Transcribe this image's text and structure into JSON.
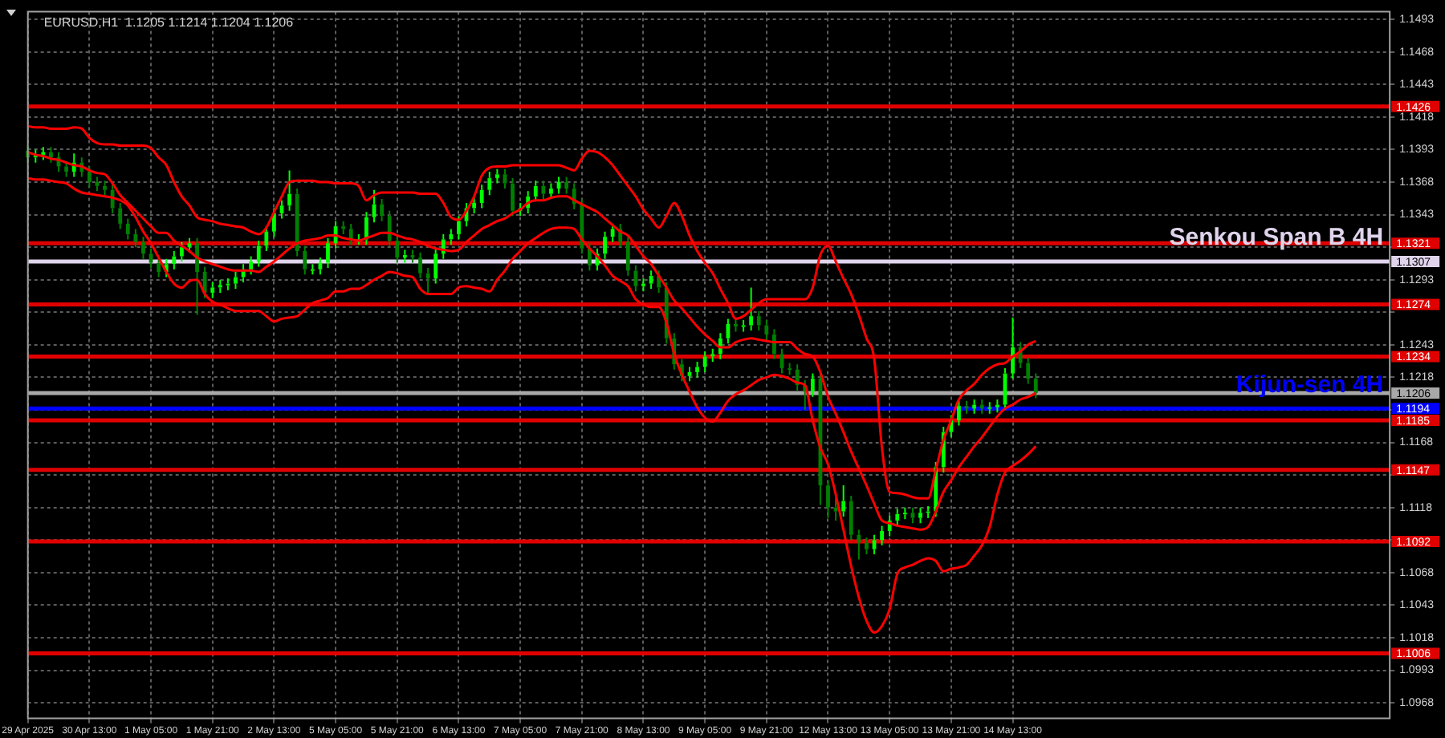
{
  "chart_data": {
    "type": "candlestick",
    "title": "EURUSD,H1  1.1205 1.1214 1.1204 1.1206",
    "grid": true,
    "colors": [
      "#008000",
      "#00ff00",
      "#00ff00",
      "#008000",
      "#008000",
      "#008000",
      "#00ff00",
      "#008000",
      "#008000",
      "#008000",
      "#008000",
      "#008000",
      "#008000",
      "#008000",
      "#008000",
      "#008000",
      "#008000",
      "#008000",
      "#00ff00",
      "#00ff00",
      "#00ff00",
      "#00ff00",
      "#008000",
      "#008000",
      "#00ff00",
      "#00ff00",
      "#00ff00",
      "#00ff00",
      "#00ff00",
      "#00ff00",
      "#00ff00",
      "#00ff00",
      "#00ff00",
      "#00ff00",
      "#00ff00",
      "#008000",
      "#008000",
      "#00ff00",
      "#00ff00",
      "#00ff00",
      "#00ff00",
      "#008000",
      "#008000",
      "#00ff00",
      "#00ff00",
      "#00ff00",
      "#008000",
      "#008000",
      "#008000",
      "#00ff00",
      "#008000",
      "#008000",
      "#008000",
      "#00ff00",
      "#00ff00",
      "#00ff00",
      "#00ff00",
      "#00ff00",
      "#00ff00",
      "#00ff00",
      "#00ff00",
      "#00ff00",
      "#008000",
      "#008000",
      "#00ff00",
      "#00ff00",
      "#00ff00",
      "#008000",
      "#00ff00",
      "#00ff00",
      "#008000",
      "#008000",
      "#008000",
      "#008000",
      "#00ff00",
      "#00ff00",
      "#00ff00",
      "#008000",
      "#008000",
      "#008000",
      "#00ff00",
      "#00ff00",
      "#008000",
      "#008000",
      "#008000",
      "#008000",
      "#00ff00",
      "#00ff00",
      "#00ff00",
      "#00ff00",
      "#00ff00",
      "#00ff00",
      "#008000",
      "#00ff00",
      "#00ff00",
      "#008000",
      "#008000",
      "#008000",
      "#008000",
      "#008000",
      "#008000",
      "#008000",
      "#00ff00",
      "#008000",
      "#008000",
      "#008000",
      "#00ff00",
      "#008000",
      "#008000",
      "#008000",
      "#00ff00",
      "#00ff00",
      "#00ff00",
      "#00ff00",
      "#00ff00",
      "#008000",
      "#00ff00",
      "#00ff00",
      "#00ff00",
      "#00ff00",
      "#00ff00",
      "#00ff00",
      "#008000",
      "#00ff00",
      "#008000",
      "#00ff00",
      "#00ff00",
      "#00ff00",
      "#00ff00",
      "#008000",
      "#008000",
      "#008000",
      null,
      null,
      null,
      null,
      null,
      null,
      null,
      null,
      null,
      null,
      null,
      null,
      null,
      null,
      null,
      null,
      null,
      null,
      null,
      null,
      null,
      null,
      null,
      null,
      null,
      null,
      null,
      null,
      null,
      null,
      null,
      null,
      null,
      null,
      null,
      null,
      null,
      null,
      null,
      null,
      null,
      null,
      null,
      null,
      null,
      null
    ],
    "annotations": [
      {
        "text": "Senkou Span B 4H",
        "y": 1.1307
      },
      {
        "text": "Kijun-sen 4H",
        "y": 1.1194
      }
    ],
    "categories": [
      "29 Apr 2025",
      null,
      null,
      null,
      null,
      null,
      null,
      null,
      "30 Apr 13:00",
      null,
      null,
      null,
      null,
      null,
      null,
      null,
      "1 May 05:00",
      null,
      null,
      null,
      null,
      null,
      null,
      null,
      "1 May 21:00",
      null,
      null,
      null,
      null,
      null,
      null,
      null,
      "2 May 13:00",
      null,
      null,
      null,
      null,
      null,
      null,
      null,
      "5 May 05:00",
      null,
      null,
      null,
      null,
      null,
      null,
      null,
      "5 May 21:00",
      null,
      null,
      null,
      null,
      null,
      null,
      null,
      "6 May 13:00",
      null,
      null,
      null,
      null,
      null,
      null,
      null,
      "7 May 05:00",
      null,
      null,
      null,
      null,
      null,
      null,
      null,
      "7 May 21:00",
      null,
      null,
      null,
      null,
      null,
      null,
      null,
      "8 May 13:00",
      null,
      null,
      null,
      null,
      null,
      null,
      null,
      "9 May 05:00",
      null,
      null,
      null,
      null,
      null,
      null,
      null,
      "9 May 21:00",
      null,
      null,
      null,
      null,
      null,
      null,
      null,
      "12 May 13:00",
      null,
      null,
      null,
      null,
      null,
      null,
      null,
      "13 May 05:00",
      null,
      null,
      null,
      null,
      null,
      null,
      null,
      "13 May 21:00",
      null,
      null,
      null,
      null,
      null,
      null,
      null,
      "14 May 13:00",
      null,
      null,
      null,
      null,
      null,
      null,
      null,
      null,
      null,
      null,
      null,
      null,
      null,
      null,
      null,
      null,
      null,
      null,
      null,
      null,
      null,
      null,
      null,
      null,
      null,
      null,
      null,
      null,
      null,
      null,
      null,
      null,
      null,
      null,
      null,
      null,
      null,
      null,
      null,
      null,
      null,
      null,
      null,
      null,
      null,
      null,
      null,
      null,
      null
    ],
    "ohlc": [
      [
        1.1392,
        1.1396,
        1.1383,
        1.1387
      ],
      [
        1.1387,
        1.1393,
        1.1383,
        1.1389
      ],
      [
        1.1389,
        1.1395,
        1.1385,
        1.1391
      ],
      [
        1.1391,
        1.1395,
        1.1383,
        1.1387
      ],
      [
        1.1387,
        1.1391,
        1.1376,
        1.138
      ],
      [
        1.138,
        1.1384,
        1.1372,
        1.1376
      ],
      [
        1.1376,
        1.139,
        1.1372,
        1.1383
      ],
      [
        1.1383,
        1.1387,
        1.1372,
        1.1376
      ],
      [
        1.1376,
        1.138,
        1.1364,
        1.1368
      ],
      [
        1.1368,
        1.1372,
        1.1361,
        1.1365
      ],
      [
        1.1365,
        1.1369,
        1.1358,
        1.1362
      ],
      [
        1.1362,
        1.1366,
        1.1344,
        1.1348
      ],
      [
        1.1348,
        1.1352,
        1.1332,
        1.1336
      ],
      [
        1.1336,
        1.134,
        1.1324,
        1.1328
      ],
      [
        1.1328,
        1.1332,
        1.1318,
        1.1322
      ],
      [
        1.1322,
        1.1326,
        1.1309,
        1.1313
      ],
      [
        1.1313,
        1.1317,
        1.1302,
        1.1306
      ],
      [
        1.1306,
        1.131,
        1.1295,
        1.1299
      ],
      [
        1.1299,
        1.1309,
        1.1295,
        1.1305
      ],
      [
        1.1305,
        1.1315,
        1.1301,
        1.1311
      ],
      [
        1.1311,
        1.1322,
        1.1307,
        1.1318
      ],
      [
        1.1318,
        1.1325,
        1.1314,
        1.1321
      ],
      [
        1.1321,
        1.1325,
        1.1266,
        1.1299
      ],
      [
        1.1299,
        1.1303,
        1.1279,
        1.1283
      ],
      [
        1.1283,
        1.1291,
        1.1279,
        1.1287
      ],
      [
        1.1287,
        1.1293,
        1.1283,
        1.1289
      ],
      [
        1.1289,
        1.1294,
        1.1285,
        1.129
      ],
      [
        1.129,
        1.1299,
        1.1286,
        1.1295
      ],
      [
        1.1295,
        1.1305,
        1.1291,
        1.1301
      ],
      [
        1.1301,
        1.1311,
        1.1297,
        1.1307
      ],
      [
        1.1307,
        1.1323,
        1.1303,
        1.1319
      ],
      [
        1.1319,
        1.1334,
        1.1315,
        1.133
      ],
      [
        1.133,
        1.1348,
        1.1326,
        1.1344
      ],
      [
        1.1344,
        1.1354,
        1.134,
        1.135
      ],
      [
        1.135,
        1.1377,
        1.1346,
        1.1359
      ],
      [
        1.1359,
        1.1363,
        1.1311,
        1.1315
      ],
      [
        1.1315,
        1.1319,
        1.1297,
        1.1301
      ],
      [
        1.1301,
        1.1305,
        1.1297,
        1.1301
      ],
      [
        1.1301,
        1.131,
        1.1297,
        1.1306
      ],
      [
        1.1306,
        1.1325,
        1.1302,
        1.1321
      ],
      [
        1.1321,
        1.1338,
        1.1317,
        1.1334
      ],
      [
        1.1334,
        1.1338,
        1.1328,
        1.1332
      ],
      [
        1.1332,
        1.1336,
        1.132,
        1.1324
      ],
      [
        1.1324,
        1.1328,
        1.132,
        1.1324
      ],
      [
        1.1324,
        1.1345,
        1.132,
        1.1341
      ],
      [
        1.1341,
        1.1362,
        1.1337,
        1.1351
      ],
      [
        1.1351,
        1.1355,
        1.1338,
        1.1342
      ],
      [
        1.1342,
        1.1346,
        1.1319,
        1.1323
      ],
      [
        1.1323,
        1.1327,
        1.1306,
        1.131
      ],
      [
        1.131,
        1.1316,
        1.1306,
        1.1312
      ],
      [
        1.1312,
        1.1316,
        1.1306,
        1.131
      ],
      [
        1.131,
        1.1314,
        1.1294,
        1.1298
      ],
      [
        1.1298,
        1.1302,
        1.1282,
        1.1294
      ],
      [
        1.1294,
        1.1317,
        1.129,
        1.1313
      ],
      [
        1.1313,
        1.1328,
        1.1309,
        1.1324
      ],
      [
        1.1324,
        1.1332,
        1.132,
        1.1328
      ],
      [
        1.1328,
        1.1342,
        1.1324,
        1.1338
      ],
      [
        1.1338,
        1.1352,
        1.1334,
        1.1348
      ],
      [
        1.1348,
        1.1356,
        1.1344,
        1.1352
      ],
      [
        1.1352,
        1.1366,
        1.1348,
        1.1362
      ],
      [
        1.1362,
        1.1376,
        1.1358,
        1.1371
      ],
      [
        1.1371,
        1.1378,
        1.1367,
        1.1374
      ],
      [
        1.1374,
        1.1378,
        1.1363,
        1.1367
      ],
      [
        1.1367,
        1.1371,
        1.1342,
        1.1346
      ],
      [
        1.1346,
        1.1352,
        1.1342,
        1.1348
      ],
      [
        1.1348,
        1.1361,
        1.1344,
        1.1357
      ],
      [
        1.1357,
        1.1369,
        1.1353,
        1.1365
      ],
      [
        1.1365,
        1.1369,
        1.1355,
        1.1359
      ],
      [
        1.1359,
        1.1367,
        1.1355,
        1.1363
      ],
      [
        1.1363,
        1.1372,
        1.1359,
        1.1368
      ],
      [
        1.1368,
        1.1372,
        1.1359,
        1.1363
      ],
      [
        1.1363,
        1.1367,
        1.1347,
        1.1351
      ],
      [
        1.1351,
        1.1355,
        1.1313,
        1.1317
      ],
      [
        1.1317,
        1.1321,
        1.13,
        1.1304
      ],
      [
        1.1304,
        1.1317,
        1.13,
        1.1313
      ],
      [
        1.1313,
        1.133,
        1.1309,
        1.1326
      ],
      [
        1.1326,
        1.1336,
        1.1322,
        1.1332
      ],
      [
        1.1332,
        1.1336,
        1.1318,
        1.1322
      ],
      [
        1.1322,
        1.1326,
        1.1296,
        1.13
      ],
      [
        1.13,
        1.1304,
        1.1284,
        1.1288
      ],
      [
        1.1288,
        1.1294,
        1.1284,
        1.129
      ],
      [
        1.129,
        1.13,
        1.1286,
        1.1296
      ],
      [
        1.1296,
        1.13,
        1.1283,
        1.1287
      ],
      [
        1.1287,
        1.1291,
        1.1244,
        1.1248
      ],
      [
        1.1248,
        1.1252,
        1.1224,
        1.1228
      ],
      [
        1.1228,
        1.1232,
        1.1215,
        1.1219
      ],
      [
        1.1219,
        1.1226,
        1.1215,
        1.1222
      ],
      [
        1.1222,
        1.123,
        1.1218,
        1.1226
      ],
      [
        1.1226,
        1.1238,
        1.1222,
        1.1234
      ],
      [
        1.1234,
        1.124,
        1.123,
        1.1236
      ],
      [
        1.1236,
        1.1252,
        1.1232,
        1.1248
      ],
      [
        1.1248,
        1.1263,
        1.1244,
        1.1259
      ],
      [
        1.1259,
        1.1263,
        1.1253,
        1.1257
      ],
      [
        1.1257,
        1.1262,
        1.1253,
        1.1258
      ],
      [
        1.1258,
        1.1287,
        1.1254,
        1.1265
      ],
      [
        1.1265,
        1.1269,
        1.1254,
        1.1258
      ],
      [
        1.1258,
        1.1262,
        1.1247,
        1.1251
      ],
      [
        1.1251,
        1.1255,
        1.1232,
        1.1236
      ],
      [
        1.1236,
        1.124,
        1.1221,
        1.1225
      ],
      [
        1.1225,
        1.1229,
        1.122,
        1.1224
      ],
      [
        1.1224,
        1.1228,
        1.1208,
        1.1212
      ],
      [
        1.1212,
        1.1216,
        1.1193,
        1.1207
      ],
      [
        1.1207,
        1.1221,
        1.1203,
        1.1217
      ],
      [
        1.1217,
        1.1221,
        1.112,
        1.1135
      ],
      [
        1.1135,
        1.1139,
        1.111,
        1.1118
      ],
      [
        1.1118,
        1.1125,
        1.1108,
        1.1115
      ],
      [
        1.1115,
        1.1135,
        1.1111,
        1.1123
      ],
      [
        1.1123,
        1.1127,
        1.1093,
        1.1097
      ],
      [
        1.1097,
        1.1101,
        1.1078,
        1.1091
      ],
      [
        1.1091,
        1.1095,
        1.1082,
        1.1086
      ],
      [
        1.1086,
        1.1097,
        1.1082,
        1.1093
      ],
      [
        1.1093,
        1.1104,
        1.1089,
        1.11
      ],
      [
        1.11,
        1.1112,
        1.1096,
        1.1108
      ],
      [
        1.1108,
        1.1117,
        1.1104,
        1.1113
      ],
      [
        1.1113,
        1.1118,
        1.1109,
        1.1114
      ],
      [
        1.1114,
        1.1118,
        1.1106,
        1.111
      ],
      [
        1.111,
        1.1118,
        1.1106,
        1.1114
      ],
      [
        1.1114,
        1.1119,
        1.111,
        1.1115
      ],
      [
        1.1115,
        1.1153,
        1.1111,
        1.1149
      ],
      [
        1.1149,
        1.118,
        1.1145,
        1.1176
      ],
      [
        1.1176,
        1.1189,
        1.1172,
        1.1185
      ],
      [
        1.1185,
        1.12,
        1.1181,
        1.1196
      ],
      [
        1.1196,
        1.12,
        1.119,
        1.1194
      ],
      [
        1.1194,
        1.1201,
        1.119,
        1.1197
      ],
      [
        1.1197,
        1.1201,
        1.119,
        1.1194
      ],
      [
        1.1194,
        1.1199,
        1.119,
        1.1195
      ],
      [
        1.1195,
        1.1201,
        1.1191,
        1.1197
      ],
      [
        1.1197,
        1.1225,
        1.1193,
        1.1221
      ],
      [
        1.1221,
        1.1264,
        1.1217,
        1.1241
      ],
      [
        1.1241,
        1.1245,
        1.1225,
        1.1229
      ],
      [
        1.1229,
        1.1233,
        1.1213,
        1.1217
      ],
      [
        1.1217,
        1.1221,
        1.1202,
        1.1206
      ],
      null,
      null,
      null,
      null,
      null,
      null,
      null,
      null,
      null,
      null,
      null,
      null,
      null,
      null,
      null,
      null,
      null,
      null,
      null,
      null,
      null,
      null,
      null,
      null,
      null,
      null,
      null,
      null,
      null,
      null,
      null,
      null,
      null,
      null,
      null,
      null,
      null,
      null,
      null,
      null,
      null,
      null,
      null,
      null,
      null,
      null
    ],
    "series": [
      {
        "type": "line",
        "color": "#ff0000",
        "values": [
          1.1411,
          1.141,
          1.141,
          1.1409,
          1.1409,
          1.1409,
          1.141,
          1.1409,
          1.1402,
          1.1398,
          1.1397,
          1.1397,
          1.1396,
          1.1396,
          1.1396,
          1.1396,
          1.1394,
          1.1387,
          1.1381,
          1.1368,
          1.1357,
          1.135,
          1.1341,
          1.1339,
          1.1338,
          1.1336,
          1.1335,
          1.1334,
          1.1333,
          1.133,
          1.1328,
          1.1333,
          1.1345,
          1.1357,
          1.1368,
          1.1369,
          1.1369,
          1.1369,
          1.1368,
          1.1368,
          1.1367,
          1.1367,
          1.1367,
          1.1365,
          1.1354,
          1.1358,
          1.136,
          1.136,
          1.136,
          1.136,
          1.136,
          1.1359,
          1.1359,
          1.1359,
          1.1352,
          1.1341,
          1.1339,
          1.1346,
          1.1357,
          1.1373,
          1.1379,
          1.138,
          1.138,
          1.1381,
          1.1381,
          1.1381,
          1.1381,
          1.1381,
          1.1381,
          1.1381,
          1.1379,
          1.1377,
          1.1386,
          1.1392,
          1.1391,
          1.1387,
          1.1381,
          1.1373,
          1.1365,
          1.1357,
          1.1347,
          1.134,
          1.1333,
          1.1342,
          1.1352,
          1.1342,
          1.1327,
          1.1315,
          1.1306,
          1.1298,
          1.1286,
          1.1275,
          1.1263,
          1.1265,
          1.127,
          1.1275,
          1.1278,
          1.1278,
          1.1278,
          1.1278,
          1.1278,
          1.1278,
          1.1287,
          1.1312,
          1.1319,
          1.1307,
          1.1294,
          1.1282,
          1.1266,
          1.1248,
          1.1232,
          1.1164,
          1.113,
          1.1129,
          1.1128,
          1.1126,
          1.1125,
          1.1125,
          1.1147,
          1.117,
          1.1185,
          1.1201,
          1.1208,
          1.1213,
          1.122,
          1.1225,
          1.1228,
          1.1229,
          1.1234,
          1.1238,
          1.1243,
          1.1246,
          null,
          null,
          null,
          null,
          null,
          null,
          null,
          null,
          null,
          null,
          null,
          null,
          null,
          null,
          null,
          null,
          null,
          null,
          null,
          null,
          null,
          null,
          null,
          null,
          null,
          null,
          null,
          null,
          null,
          null,
          null,
          null,
          null,
          null,
          null,
          null,
          null,
          null,
          null,
          null,
          null,
          null,
          null,
          null,
          null,
          null
        ]
      },
      {
        "type": "line",
        "color": "#ff0000",
        "values": [
          1.1391,
          1.1389,
          1.1388,
          1.1386,
          1.1385,
          1.1383,
          1.1381,
          1.138,
          1.1377,
          1.1375,
          1.1374,
          1.1367,
          1.1358,
          1.1352,
          1.1346,
          1.134,
          1.1334,
          1.1329,
          1.1329,
          1.1323,
          1.1319,
          1.1315,
          1.131,
          1.1307,
          1.1305,
          1.1303,
          1.1301,
          1.13,
          1.13,
          1.13,
          1.1299,
          1.1303,
          1.1307,
          1.1312,
          1.1317,
          1.1321,
          1.1323,
          1.1324,
          1.1325,
          1.1327,
          1.1327,
          1.1325,
          1.1324,
          1.1323,
          1.1325,
          1.1327,
          1.1329,
          1.1329,
          1.1327,
          1.1325,
          1.1324,
          1.1322,
          1.1319,
          1.1317,
          1.1316,
          1.1315,
          1.1316,
          1.1322,
          1.1327,
          1.1332,
          1.1335,
          1.1338,
          1.134,
          1.1344,
          1.1347,
          1.1352,
          1.1354,
          1.1354,
          1.1356,
          1.1357,
          1.1357,
          1.1354,
          1.1351,
          1.1348,
          1.1345,
          1.134,
          1.1335,
          1.133,
          1.1327,
          1.1319,
          1.1311,
          1.1305,
          1.1296,
          1.1287,
          1.1277,
          1.1271,
          1.1264,
          1.1257,
          1.1251,
          1.1246,
          1.1241,
          1.1241,
          1.1245,
          1.1247,
          1.1248,
          1.1247,
          1.1246,
          1.1245,
          1.1245,
          1.1245,
          1.124,
          1.1236,
          1.1234,
          1.1222,
          1.1203,
          1.119,
          1.1176,
          1.1161,
          1.1148,
          1.1135,
          1.1121,
          1.1108,
          1.1106,
          1.1104,
          1.1103,
          1.1102,
          1.1101,
          1.1103,
          1.1115,
          1.113,
          1.1139,
          1.1149,
          1.1157,
          1.1165,
          1.1172,
          1.118,
          1.1188,
          1.1194,
          1.1197,
          1.1201,
          1.1203,
          1.1206,
          null,
          null,
          null,
          null,
          null,
          null,
          null,
          null,
          null,
          null,
          null,
          null,
          null,
          null,
          null,
          null,
          null,
          null,
          null,
          null,
          null,
          null,
          null,
          null,
          null,
          null,
          null,
          null,
          null,
          null,
          null,
          null,
          null,
          null,
          null,
          null,
          null,
          null,
          null,
          null,
          null,
          null,
          null,
          null,
          null,
          null
        ]
      },
      {
        "type": "line",
        "color": "#ff0000",
        "values": [
          1.1371,
          1.137,
          1.137,
          1.1369,
          1.1368,
          1.1367,
          1.1363,
          1.136,
          1.1359,
          1.1358,
          1.1357,
          1.1356,
          1.1354,
          1.135,
          1.1341,
          1.133,
          1.1321,
          1.131,
          1.1299,
          1.129,
          1.1287,
          1.1292,
          1.1293,
          1.1282,
          1.1276,
          1.1274,
          1.1271,
          1.1269,
          1.1269,
          1.1269,
          1.1269,
          1.1265,
          1.1261,
          1.1263,
          1.1264,
          1.1265,
          1.127,
          1.1275,
          1.1277,
          1.1279,
          1.1284,
          1.1284,
          1.1286,
          1.1286,
          1.1289,
          1.1293,
          1.1296,
          1.1299,
          1.1298,
          1.1296,
          1.1295,
          1.1286,
          1.1282,
          1.1282,
          1.1282,
          1.1282,
          1.1287,
          1.1288,
          1.1287,
          1.1286,
          1.1284,
          1.1293,
          1.13,
          1.1309,
          1.1315,
          1.1321,
          1.1325,
          1.1329,
          1.1332,
          1.1333,
          1.1333,
          1.1332,
          1.1324,
          1.1317,
          1.1311,
          1.1304,
          1.1296,
          1.1292,
          1.1288,
          1.1278,
          1.1274,
          1.1272,
          1.1272,
          1.126,
          1.1236,
          1.122,
          1.1207,
          1.1195,
          1.1187,
          1.1184,
          1.1191,
          1.12,
          1.1205,
          1.1208,
          1.1212,
          1.1216,
          1.1218,
          1.122,
          1.1219,
          1.1217,
          1.1214,
          1.1212,
          1.1185,
          1.1164,
          1.1151,
          1.1128,
          1.1101,
          1.1073,
          1.1049,
          1.1031,
          1.1022,
          1.1027,
          1.104,
          1.1067,
          1.1072,
          1.1074,
          1.1077,
          1.1079,
          1.1077,
          1.1069,
          1.1071,
          1.1072,
          1.1074,
          1.1081,
          1.1089,
          1.1103,
          1.1128,
          1.1145,
          1.115,
          1.1154,
          1.1159,
          1.1165,
          null,
          null,
          null,
          null,
          null,
          null,
          null,
          null,
          null,
          null,
          null,
          null,
          null,
          null,
          null,
          null,
          null,
          null,
          null,
          null,
          null,
          null,
          null,
          null,
          null,
          null,
          null,
          null,
          null,
          null,
          null,
          null,
          null,
          null,
          null,
          null,
          null,
          null,
          null,
          null,
          null,
          null,
          null,
          null,
          null,
          null
        ]
      }
    ],
    "ylim": [
      1.0956,
      1.1499
    ],
    "yticks": [
      1.0968,
      1.0993,
      1.1018,
      1.1043,
      1.1068,
      {
        "value": 1.1093,
        "label": null
      },
      1.1118,
      {
        "value": 1.1143,
        "label": null
      },
      1.1168,
      {
        "value": 1.1193,
        "label": null
      },
      1.1218,
      1.1243,
      {
        "value": 1.1268,
        "label": null
      },
      1.1293,
      {
        "value": 1.1318,
        "label": null
      },
      1.1343,
      1.1368,
      1.1393,
      1.1418,
      1.1443,
      1.1468,
      1.1493
    ],
    "ref_lines": [
      {
        "axis": "y",
        "value": 1.1426,
        "label": "1.1426",
        "color": "#e00000"
      },
      {
        "axis": "y",
        "value": 1.1321,
        "label": "1.1321",
        "color": "#e00000"
      },
      {
        "axis": "y",
        "value": 1.1307,
        "label": "1.1307",
        "color": "#e0d4ec"
      },
      {
        "axis": "y",
        "value": 1.1274,
        "label": "1.1274",
        "color": "#e00000"
      },
      {
        "axis": "y",
        "value": 1.1234,
        "label": "1.1234",
        "color": "#e00000"
      },
      {
        "axis": "y",
        "value": 1.1206,
        "label": "1.1206",
        "color": "#a8a8a8"
      },
      {
        "axis": "y",
        "value": 1.1194,
        "label": "1.1194",
        "color": "#0000ff"
      },
      {
        "axis": "y",
        "value": 1.1185,
        "label": "1.1185",
        "color": "#e00000"
      },
      {
        "axis": "y",
        "value": 1.1147,
        "label": "1.1147",
        "color": "#e00000"
      },
      {
        "axis": "y",
        "value": 1.1092,
        "label": "1.1092",
        "color": "#e00000"
      },
      {
        "axis": "y",
        "value": 1.1006,
        "label": "1.1006",
        "color": "#e00000"
      }
    ]
  }
}
